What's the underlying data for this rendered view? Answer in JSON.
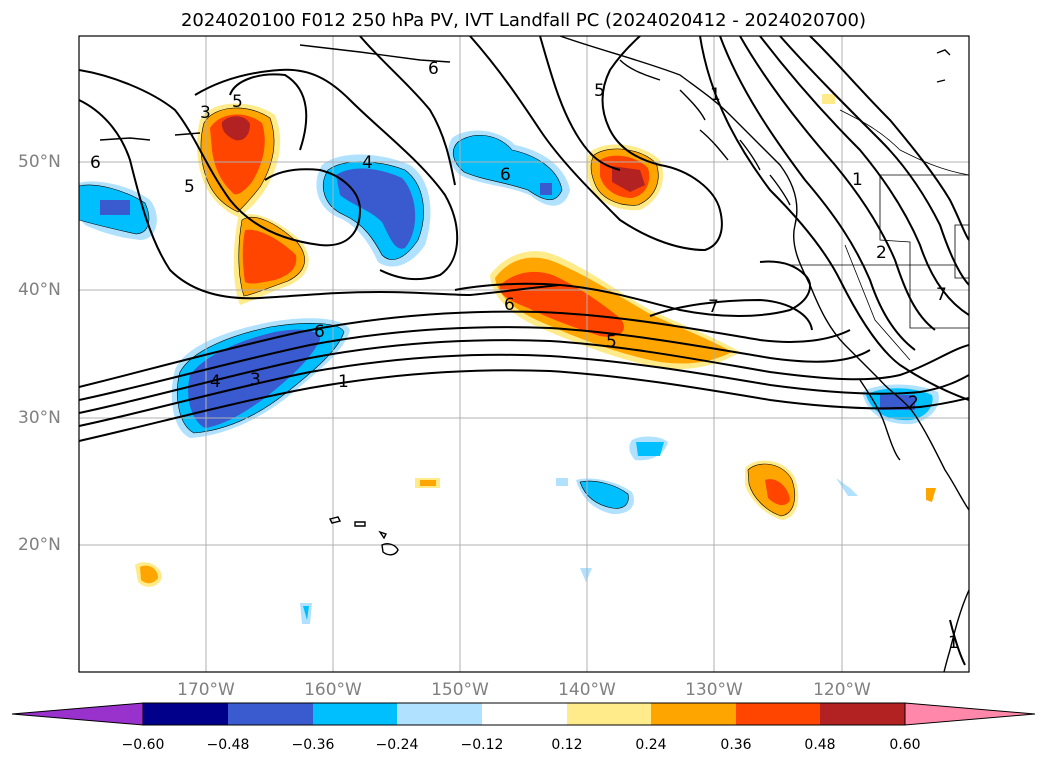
{
  "title": "2024020100 F012 250 hPa PV, IVT Landfall PC (2024020412 - 2024020700)",
  "map": {
    "lat_labels": [
      "50°N",
      "40°N",
      "30°N",
      "20°N"
    ],
    "lon_labels": [
      "170°W",
      "160°W",
      "150°W",
      "140°W",
      "130°W",
      "120°W"
    ],
    "contour_labels": [
      "5",
      "6",
      "3",
      "4",
      "6",
      "5",
      "7",
      "5",
      "6",
      "1",
      "2",
      "1",
      "6",
      "4",
      "3",
      "1",
      "5",
      "6",
      "7",
      "2",
      "1"
    ]
  },
  "colorbar": {
    "ticks": [
      "−0.60",
      "−0.48",
      "−0.36",
      "−0.24",
      "−0.12",
      "0.12",
      "0.24",
      "0.36",
      "0.48",
      "0.60"
    ],
    "colors": [
      "#9932cc",
      "#00008b",
      "#3a5bd0",
      "#00bfff",
      "#b0e2ff",
      "#ffffff",
      "#ffeb8a",
      "#ffa500",
      "#ff4500",
      "#b22222",
      "#ff88aa"
    ]
  }
}
